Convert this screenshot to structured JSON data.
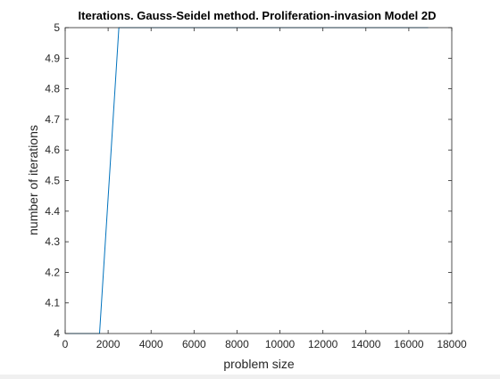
{
  "chart_data": {
    "type": "line",
    "title": "Iterations. Gauss-Seidel method. Proliferation-invasion Model 2D",
    "xlabel": "problem size",
    "ylabel": "number of iterations",
    "xlim": [
      0,
      18000
    ],
    "ylim": [
      4,
      5
    ],
    "x_ticks": [
      0,
      2000,
      4000,
      6000,
      8000,
      10000,
      12000,
      14000,
      16000,
      18000
    ],
    "x_tick_labels": [
      "0",
      "2000",
      "4000",
      "6000",
      "8000",
      "10000",
      "12000",
      "14000",
      "16000",
      "18000"
    ],
    "y_ticks": [
      4,
      4.1,
      4.2,
      4.3,
      4.4,
      4.5,
      4.6,
      4.7,
      4.8,
      4.9,
      5
    ],
    "y_tick_labels": [
      "4",
      "4.1",
      "4.2",
      "4.3",
      "4.4",
      "4.5",
      "4.6",
      "4.7",
      "4.8",
      "4.9",
      "5"
    ],
    "grid": false,
    "legend": "none",
    "series": [
      {
        "color": "#0072bd",
        "x": [
          0,
          400,
          1600,
          2500,
          3600,
          4900,
          6400,
          8100,
          10000,
          12100,
          14400,
          16900
        ],
        "y": [
          4,
          4,
          4,
          5,
          5,
          5,
          5,
          5,
          5,
          5,
          5,
          5
        ]
      }
    ]
  }
}
